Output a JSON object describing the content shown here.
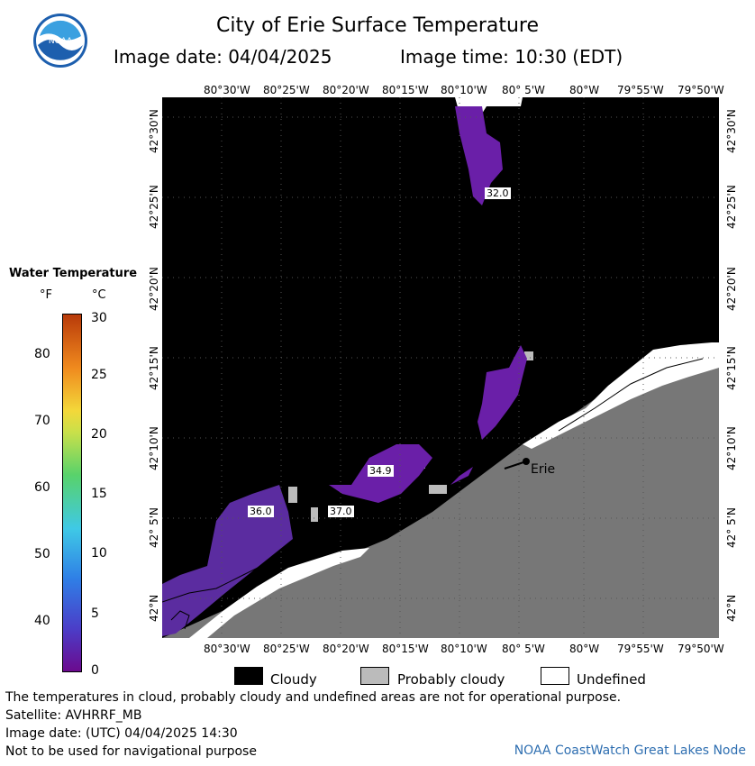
{
  "header": {
    "title": "City of Erie Surface Temperature",
    "image_date": "Image date: 04/04/2025",
    "image_time": "Image time: 10:30 (EDT)"
  },
  "logo": {
    "text": "NOAA"
  },
  "map": {
    "lon_labels": [
      "80°30'W",
      "80°25'W",
      "80°20'W",
      "80°15'W",
      "80°10'W",
      "80° 5'W",
      "80°W",
      "79°55'W",
      "79°50'W"
    ],
    "lat_labels": [
      "42°30'N",
      "42°25'N",
      "42°20'N",
      "42°15'N",
      "42°10'N",
      "42° 5'N",
      "42°N"
    ],
    "temp_labels": [
      "32.0",
      "34.9",
      "36.0",
      "37.0"
    ],
    "city": "Erie",
    "colors": {
      "cloudy": "#000000",
      "probably_cloudy": "#bbbbbb",
      "land": "#777777",
      "undefined": "#ffffff",
      "water": "#6a1fa8"
    }
  },
  "legend": {
    "title": "Water Temperature",
    "unit_f": "°F",
    "unit_c": "°C",
    "f_ticks": [
      "80",
      "70",
      "60",
      "50",
      "40"
    ],
    "c_ticks": [
      "30",
      "25",
      "20",
      "15",
      "10",
      "5",
      "0"
    ]
  },
  "key": {
    "cloudy": "Cloudy",
    "probably_cloudy": "Probably cloudy",
    "undefined": "Undefined"
  },
  "footer": {
    "line1": "The temperatures in cloud, probably cloudy and undefined areas are not for operational purpose.",
    "line2": "Satellite: AVHRRF_MB",
    "line3": "Image date: (UTC) 04/04/2025  14:30",
    "line4": "Not to be used for navigational purpose",
    "node": "NOAA CoastWatch Great Lakes Node"
  }
}
